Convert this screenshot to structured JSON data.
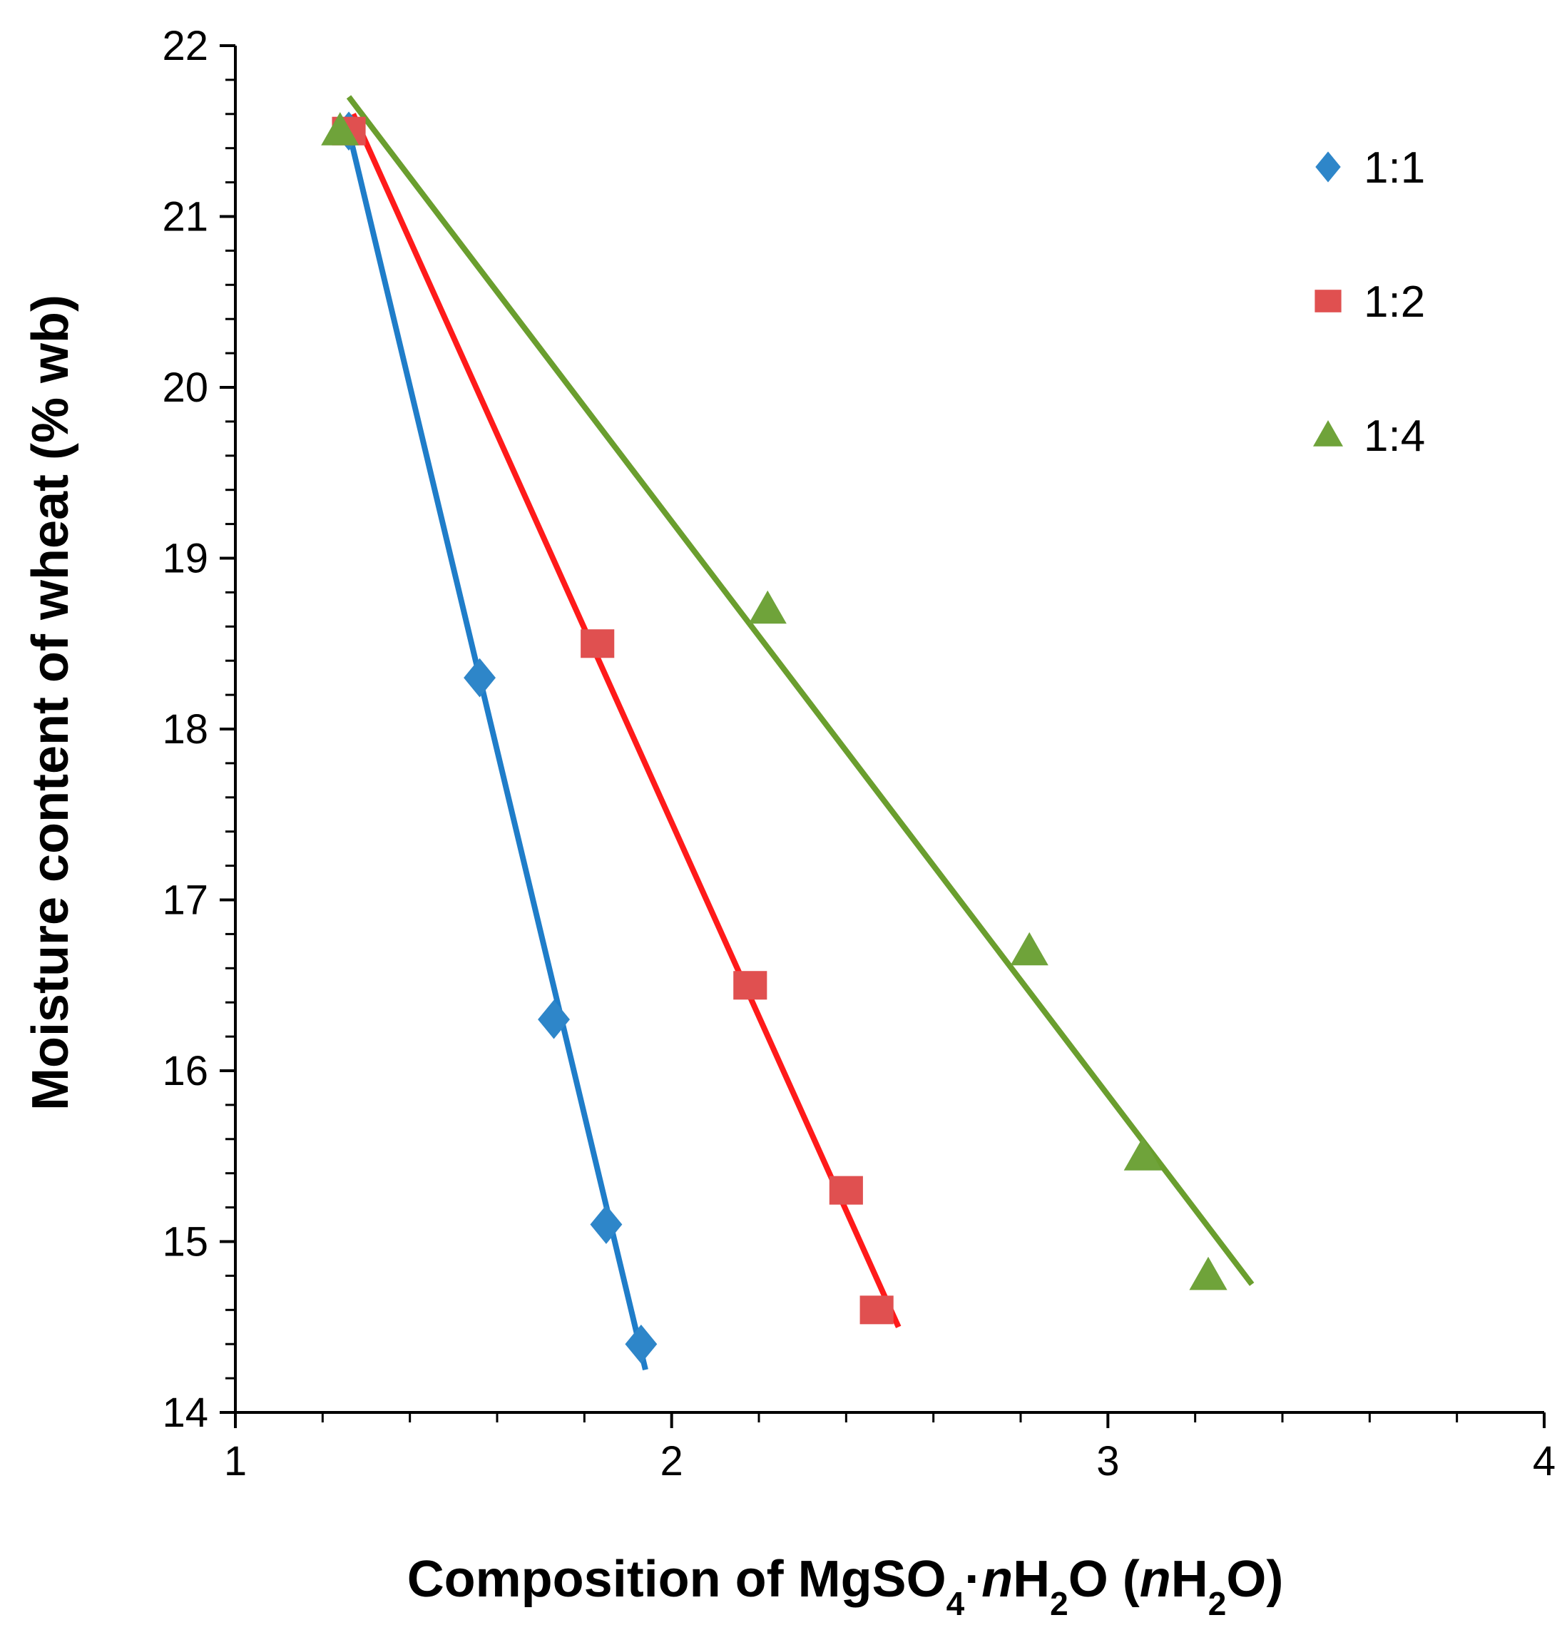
{
  "chart_data": {
    "type": "scatter",
    "title": "",
    "xlabel": "Composition of MgSO₄·nH₂O (nH₂O)",
    "xlabel_parts": {
      "p1": "Composition of MgSO",
      "sub1": "4",
      "p2": "·",
      "italic1": "n",
      "p3": "H",
      "sub2": "2",
      "p4": "O (",
      "italic2": "n",
      "p5": "H",
      "sub3": "2",
      "p6": "O)"
    },
    "ylabel": "Moisture content of wheat (% wb)",
    "xlim": [
      1,
      4
    ],
    "ylim": [
      14,
      22
    ],
    "x_ticks": [
      1,
      2,
      3,
      4
    ],
    "y_ticks": [
      14,
      15,
      16,
      17,
      18,
      19,
      20,
      21,
      22
    ],
    "x_minor_step": 0.2,
    "y_minor_step": 0.2,
    "grid": false,
    "legend_position": "top-right",
    "series": [
      {
        "name": "1:1",
        "marker": "diamond",
        "color": "#2E86C9",
        "line_color": "#1F7DC9",
        "x": [
          1.26,
          1.56,
          1.73,
          1.85,
          1.93
        ],
        "y": [
          21.5,
          18.3,
          16.3,
          15.1,
          14.4
        ],
        "trendline": {
          "x": [
            1.26,
            1.94
          ],
          "y": [
            21.5,
            14.25
          ]
        }
      },
      {
        "name": "1:2",
        "marker": "square",
        "color": "#E05050",
        "line_color": "#FF1A1A",
        "x": [
          1.26,
          1.83,
          2.18,
          2.4,
          2.47
        ],
        "y": [
          21.5,
          18.5,
          16.5,
          15.3,
          14.6
        ],
        "trendline": {
          "x": [
            1.27,
            2.52
          ],
          "y": [
            21.6,
            14.5
          ]
        }
      },
      {
        "name": "1:4",
        "marker": "triangle",
        "color": "#6FA33A",
        "line_color": "#6A9E2E",
        "x": [
          1.24,
          2.22,
          2.82,
          3.08,
          3.23
        ],
        "y": [
          21.5,
          18.7,
          16.7,
          15.5,
          14.8
        ],
        "trendline": {
          "x": [
            1.26,
            3.33
          ],
          "y": [
            21.7,
            14.75
          ]
        }
      }
    ]
  }
}
